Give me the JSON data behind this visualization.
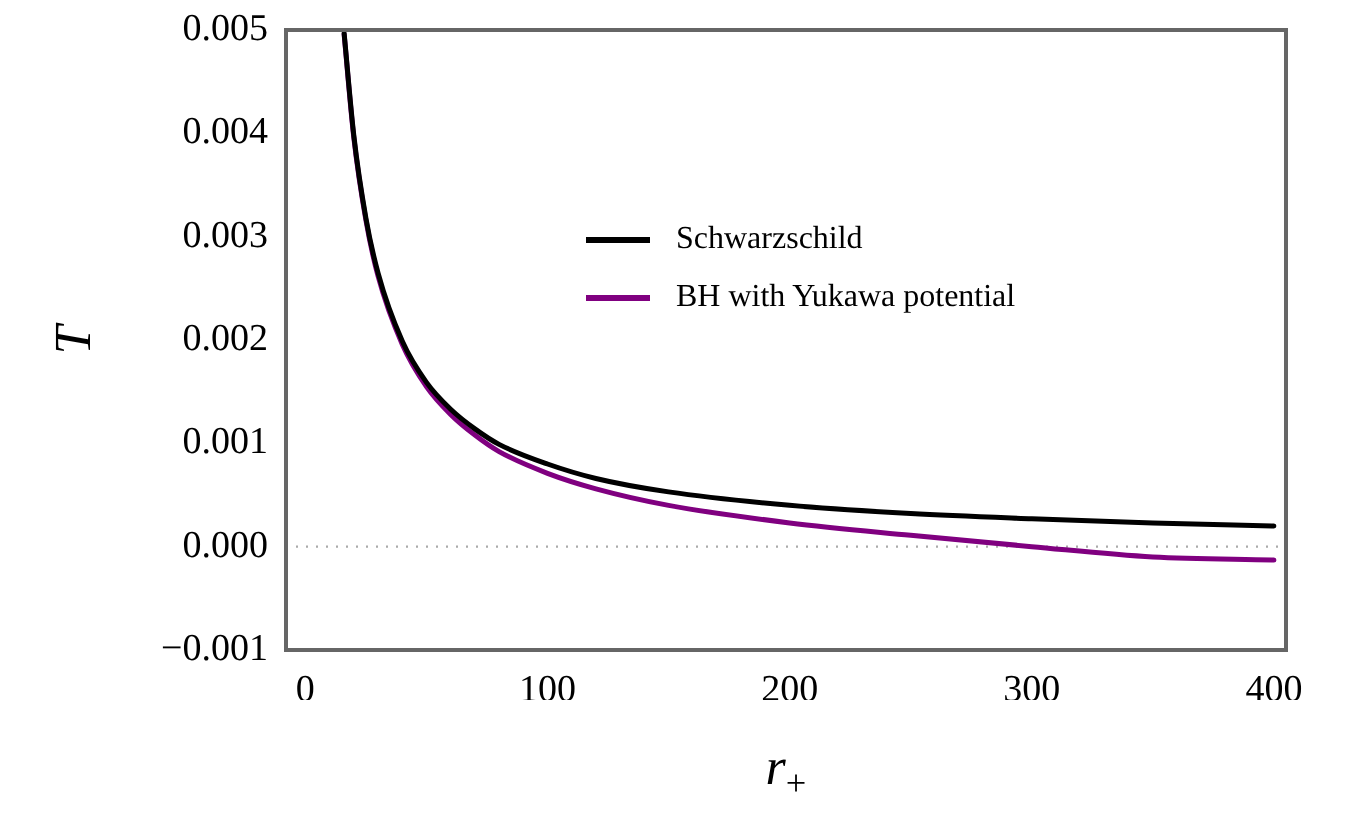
{
  "chart_data": {
    "type": "line",
    "xlabel": "r$_{+}$",
    "ylabel": "T",
    "xlim": [
      -8,
      405
    ],
    "xticks": [
      0,
      100,
      200,
      300,
      400
    ],
    "ylim": [
      -0.001,
      0.005
    ],
    "yticks": [
      {
        "value": -0.001,
        "label": "−0.001"
      },
      {
        "value": 0,
        "label": "0.000"
      },
      {
        "value": 0.001,
        "label": "0.001"
      },
      {
        "value": 0.002,
        "label": "0.002"
      },
      {
        "value": 0.003,
        "label": "0.003"
      },
      {
        "value": 0.004,
        "label": "0.004"
      },
      {
        "value": 0.005,
        "label": "0.005"
      }
    ],
    "x": [
      16,
      20,
      25,
      30,
      40,
      50,
      60,
      70,
      80,
      100,
      120,
      150,
      200,
      250,
      300,
      350,
      400
    ],
    "series": [
      {
        "name": "Schwarzschild",
        "color": "#000000",
        "values": [
          0.00497,
          0.00398,
          0.00318,
          0.00265,
          0.00199,
          0.00159,
          0.00133,
          0.00114,
          0.00099,
          0.0008,
          0.00066,
          0.00053,
          0.0004,
          0.00032,
          0.00027,
          0.00023,
          0.0002
        ]
      },
      {
        "name": "BH with Yukawa potential",
        "color": "#800080",
        "values": [
          0.00496,
          0.00396,
          0.00316,
          0.00262,
          0.00196,
          0.00155,
          0.00128,
          0.00108,
          0.00092,
          0.00071,
          0.00056,
          0.0004,
          0.00023,
          0.00011,
          0,
          -0.0001,
          -0.00013
        ]
      }
    ],
    "ref_lines": [
      {
        "axis": "y",
        "value": 0,
        "color": "#aaaaaa",
        "line_style": "dotted"
      }
    ],
    "grid": false,
    "legend": "top right",
    "marker": "none",
    "line_style": "solid"
  }
}
